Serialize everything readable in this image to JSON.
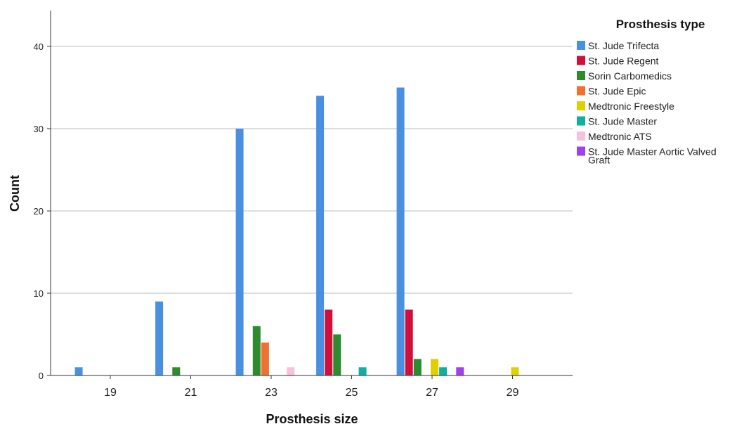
{
  "chart_data": {
    "type": "bar",
    "xlabel": "Prosthesis size",
    "ylabel": "Count",
    "ylim": [
      0,
      44
    ],
    "yticks": [
      0,
      10,
      20,
      30,
      40
    ],
    "grid": true,
    "legend_title": "Prosthesis type",
    "legend_position": "top-right",
    "categories": [
      "19",
      "21",
      "23",
      "25",
      "27",
      "29"
    ],
    "series": [
      {
        "name": "St. Jude Trifecta",
        "name_lines": [
          "St. Jude Trifecta"
        ],
        "color": "#4a90e2",
        "values": [
          1,
          9,
          30,
          34,
          35,
          0
        ]
      },
      {
        "name": "St. Jude Regent",
        "name_lines": [
          "St. Jude Regent"
        ],
        "color": "#d0103a",
        "values": [
          0,
          0,
          0,
          8,
          8,
          0
        ]
      },
      {
        "name": "Sorin Carbomedics",
        "name_lines": [
          "Sorin Carbomedics"
        ],
        "color": "#2e8b2e",
        "values": [
          0,
          1,
          6,
          5,
          2,
          0
        ]
      },
      {
        "name": "St. Jude Epic",
        "name_lines": [
          "St. Jude Epic"
        ],
        "color": "#f07030",
        "values": [
          0,
          0,
          4,
          0,
          0,
          0
        ]
      },
      {
        "name": "Medtronic Freestyle",
        "name_lines": [
          "Medtronic Freestyle"
        ],
        "color": "#e0d000",
        "values": [
          0,
          0,
          0,
          0,
          2,
          1
        ]
      },
      {
        "name": "St. Jude Master",
        "name_lines": [
          "St. Jude Master"
        ],
        "color": "#10b0a0",
        "values": [
          0,
          0,
          0,
          1,
          1,
          0
        ]
      },
      {
        "name": "Medtronic ATS",
        "name_lines": [
          "Medtronic ATS"
        ],
        "color": "#f8c0dc",
        "values": [
          0,
          0,
          1,
          0,
          0,
          0
        ]
      },
      {
        "name": "St. Jude Master Aortic Valved Graft",
        "name_lines": [
          "St. Jude Master Aortic Valved",
          "Graft"
        ],
        "color": "#a040f0",
        "values": [
          0,
          0,
          0,
          0,
          1,
          0
        ]
      }
    ]
  }
}
